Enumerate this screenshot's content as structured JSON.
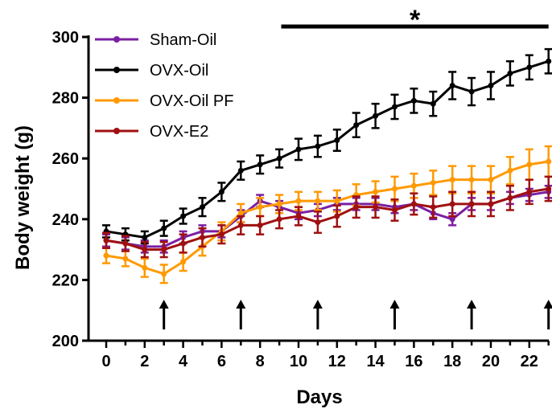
{
  "chart_data": {
    "type": "line",
    "xlabel": "Days",
    "ylabel": "Body weight (g)",
    "xlim": [
      -1,
      23
    ],
    "ylim": [
      200,
      300
    ],
    "x_ticks": [
      0,
      2,
      4,
      6,
      8,
      10,
      12,
      14,
      16,
      18,
      20,
      22
    ],
    "y_ticks": [
      200,
      220,
      240,
      260,
      280,
      300
    ],
    "legend_position": "top-left",
    "x": [
      0,
      1,
      2,
      3,
      4,
      5,
      6,
      7,
      8,
      9,
      10,
      11,
      12,
      13,
      14,
      15,
      16,
      17,
      18,
      19,
      20,
      21,
      22,
      23
    ],
    "series": [
      {
        "name": "Sham-Oil",
        "color": "#7B1FA2",
        "values": [
          233,
          232,
          231,
          231,
          234,
          236,
          236,
          241,
          246,
          244,
          242,
          243,
          245,
          245,
          245,
          244,
          245,
          242,
          240,
          245,
          245,
          247,
          248,
          249
        ],
        "errors": [
          2,
          2,
          2,
          2,
          2,
          2,
          2,
          2,
          2,
          2,
          2,
          2,
          2,
          2,
          2,
          2,
          2,
          2,
          2,
          2,
          2,
          2,
          2,
          2
        ]
      },
      {
        "name": "OVX-Oil",
        "color": "#000000",
        "values": [
          236,
          235,
          234,
          237,
          241,
          244,
          249,
          256,
          258,
          260,
          263,
          264,
          266,
          271,
          274,
          277,
          279,
          278,
          284,
          282,
          284,
          288,
          290,
          292
        ],
        "errors": [
          2,
          2,
          2,
          2.5,
          2.5,
          3,
          3,
          3,
          3,
          3,
          3.5,
          3.5,
          3.5,
          4,
          4,
          4,
          4,
          4,
          4.5,
          4.5,
          4.5,
          4,
          4,
          4
        ]
      },
      {
        "name": "OVX-Oil PF",
        "color": "#FF9900",
        "values": [
          228,
          227,
          224,
          222,
          226,
          231,
          236,
          242,
          244,
          245,
          246,
          246,
          246,
          248,
          249,
          250,
          251,
          252,
          253,
          253,
          253,
          256,
          258,
          259
        ],
        "errors": [
          2.5,
          2.5,
          3,
          3,
          3,
          3,
          3,
          3,
          3,
          3,
          3,
          3,
          3.5,
          3.5,
          3.5,
          4,
          4,
          4,
          4.5,
          4.5,
          4.5,
          4.5,
          5,
          5
        ]
      },
      {
        "name": "OVX-E2",
        "color": "#A01010",
        "values": [
          233,
          232,
          230,
          230,
          232,
          234,
          235,
          238,
          238,
          240,
          241,
          239,
          241,
          244,
          244,
          243,
          245,
          244,
          245,
          245,
          245,
          247,
          249,
          250
        ],
        "errors": [
          2.5,
          2.5,
          2.5,
          2.5,
          3,
          3,
          3,
          3,
          3,
          3,
          3,
          3.5,
          3.5,
          3.5,
          3.5,
          3.5,
          3.5,
          3.5,
          4,
          4,
          4,
          4,
          4,
          4
        ]
      }
    ],
    "annotations": {
      "significance_bar": {
        "x_start": 9.1,
        "x_end": 23,
        "label": "*"
      },
      "arrows_at_days": [
        3,
        7,
        11,
        15,
        19,
        23
      ]
    }
  }
}
